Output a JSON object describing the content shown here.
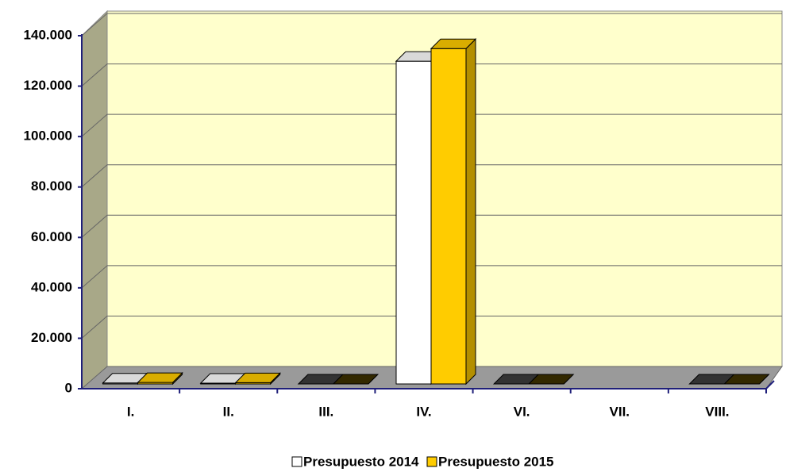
{
  "chart_data": {
    "type": "bar3d",
    "categories": [
      "I.",
      "II.",
      "III.",
      "IV.",
      "VI.",
      "VII.",
      "VIII."
    ],
    "series": [
      {
        "name": "Presupuesto 2014",
        "color": "#ffffff",
        "values": [
          400,
          300,
          0,
          128000,
          0,
          null,
          0
        ]
      },
      {
        "name": "Presupuesto 2015",
        "color": "#ffcc00",
        "values": [
          600,
          500,
          0,
          133000,
          0,
          null,
          0
        ]
      }
    ],
    "ylim": [
      0,
      140000
    ],
    "yticks": [
      0,
      {
        "value": 20000,
        "label": "20.000"
      },
      {
        "value": 40000,
        "label": "40.000"
      },
      {
        "value": 60000,
        "label": "60.000"
      },
      {
        "value": 80000,
        "label": "80.000"
      },
      {
        "value": 100000,
        "label": "100.000"
      },
      {
        "value": 120000,
        "label": "120.000"
      },
      {
        "value": 140000,
        "label": "140.000"
      }
    ],
    "grid": true,
    "legend": "bottom"
  }
}
